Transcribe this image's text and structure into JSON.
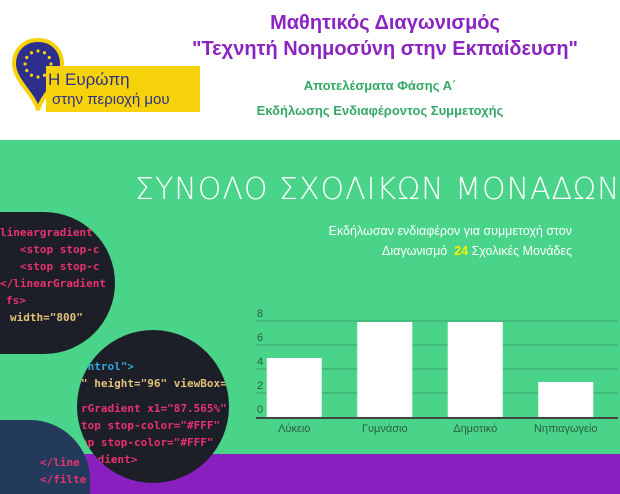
{
  "header": {
    "title_line1": "Μαθητικός Διαγωνισμός",
    "title_line2": "\"Τεχνητή Νοημοσύνη στην Εκπαίδευση\"",
    "subtitle_line1": "Αποτελέσματα Φάσης Α΄",
    "subtitle_line2": "Εκδήλωσης Ενδιαφέροντος Συμμετοχής",
    "logo": {
      "line1": "Η Ευρώπη",
      "line2": "στην περιοχή μου",
      "colors": {
        "yellow": "#f6d20a",
        "blue": "#2e2f8c"
      }
    }
  },
  "main": {
    "heading": "ΣΥΝΟΛΟ ΣΧΟΛΙΚΩΝ ΜΟΝΑΔΩΝ",
    "info_line1": "Εκδήλωσαν ενδιαφέρον για συμμετοχή στον",
    "info_prefix": "Διαγωνισμό",
    "info_count": "24",
    "info_suffix": "Σχολικές Μονάδες",
    "colors": {
      "background": "#4ad48a",
      "accent": "#8a1fc0",
      "highlight": "#f5f000"
    }
  },
  "decor": {
    "circle1": [
      "lineargradient",
      "  <stop stop-c",
      "  <stop stop-c",
      "</linearGradient",
      "fs>",
      " width=\"800\""
    ],
    "circle2": [
      "ontrol\">",
      "\" height=\"96\" viewBox=\"",
      "rGradient x1=\"87.565%\"",
      "top stop-color=\"#FFF\"",
      "op stop-color=\"#FFF\"",
      "adient>"
    ],
    "circle3": [
      "</line",
      "</filte"
    ]
  },
  "chart_data": {
    "type": "bar",
    "categories": [
      "Λύκειο",
      "Γυμνάσιο",
      "Δημοτικό",
      "Νηπιαγωγείο"
    ],
    "values": [
      5,
      8,
      8,
      3
    ],
    "yticks": [
      0,
      2,
      4,
      6,
      8
    ],
    "ylim": [
      0,
      8
    ],
    "grid": true,
    "bar_color": "#ffffff"
  }
}
